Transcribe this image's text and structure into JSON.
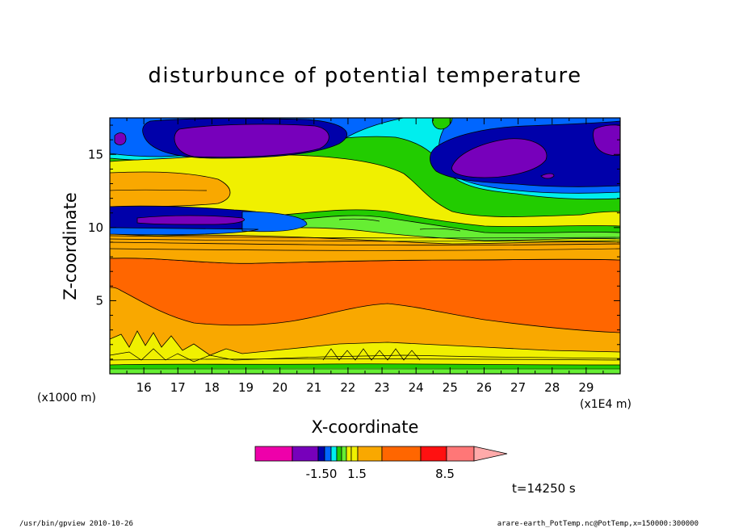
{
  "chart_data": {
    "type": "contour",
    "title": "disturbunce of potential temperature",
    "xlabel": "X-coordinate",
    "ylabel": "Z-coordinate",
    "x_unit": "(x1E4 m)",
    "y_unit": "(x1000 m)",
    "x_ticks": [
      16,
      17,
      18,
      19,
      20,
      21,
      22,
      23,
      24,
      25,
      26,
      27,
      28,
      29
    ],
    "y_ticks": [
      5,
      10,
      15
    ],
    "xlim": [
      15.0,
      30.0
    ],
    "ylim": [
      0.0,
      17.5
    ],
    "colorbar": {
      "labels": [
        {
          "text": "-1.50",
          "value": -1.5
        },
        {
          "text": "1.5",
          "value": 1.5
        },
        {
          "text": "8.5",
          "value": 8.5
        }
      ]
    },
    "time_label": "t=14250 s"
  },
  "footer": {
    "left": "/usr/bin/gpview  2010-10-26",
    "right": "arare-earth_PotTemp.nc@PotTemp,x=150000:300000"
  }
}
